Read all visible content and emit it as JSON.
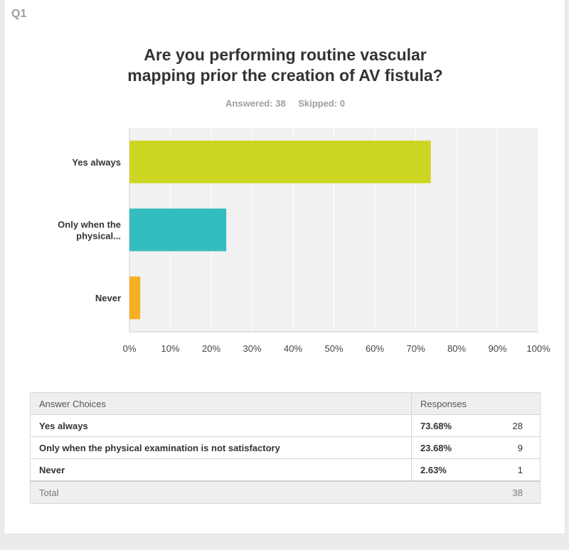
{
  "question": {
    "number": "Q1",
    "title_line1": "Are you performing routine vascular",
    "title_line2": "mapping prior the creation of AV fistula?",
    "answered": "Answered: 38",
    "skipped": "Skipped: 0"
  },
  "chart_data": {
    "type": "bar",
    "orientation": "horizontal",
    "categories": [
      "Yes always",
      "Only when the physical...",
      "Never"
    ],
    "values": [
      73.68,
      23.68,
      2.63
    ],
    "colors": [
      "#cdd523",
      "#33bdbf",
      "#f8b022"
    ],
    "xlim": [
      0,
      100
    ],
    "x_ticks": [
      "0%",
      "10%",
      "20%",
      "30%",
      "40%",
      "50%",
      "60%",
      "70%",
      "80%",
      "90%",
      "100%"
    ],
    "grid": true
  },
  "table": {
    "header_choices": "Answer Choices",
    "header_responses": "Responses",
    "rows": [
      {
        "label": "Yes always",
        "pct": "73.68%",
        "count": "28"
      },
      {
        "label": "Only when the physical examination is not satisfactory",
        "pct": "23.68%",
        "count": "9"
      },
      {
        "label": "Never",
        "pct": "2.63%",
        "count": "1"
      }
    ],
    "total_label": "Total",
    "total_value": "38"
  },
  "colors": {
    "background": "#ebebeb",
    "card": "#ffffff",
    "plot_bg": "#f1f1f1"
  }
}
